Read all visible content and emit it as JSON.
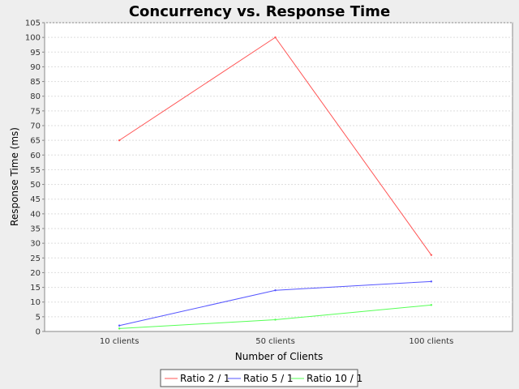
{
  "chart_data": {
    "type": "line",
    "title": "Concurrency vs. Response Time",
    "xlabel": "Number of Clients",
    "ylabel": "Response Time (ms)",
    "categories": [
      "10 clients",
      "50 clients",
      "100 clients"
    ],
    "ylim": [
      0,
      105
    ],
    "ytick_step": 5,
    "grid": true,
    "legend_position": "bottom",
    "series": [
      {
        "name": "Ratio 2 / 1",
        "color": "#ff5555",
        "values": [
          65,
          100,
          26
        ]
      },
      {
        "name": "Ratio 5 / 1",
        "color": "#5555ff",
        "values": [
          2,
          14,
          17
        ]
      },
      {
        "name": "Ratio 10 / 1",
        "color": "#55ff55",
        "values": [
          1,
          4,
          9
        ]
      }
    ]
  }
}
